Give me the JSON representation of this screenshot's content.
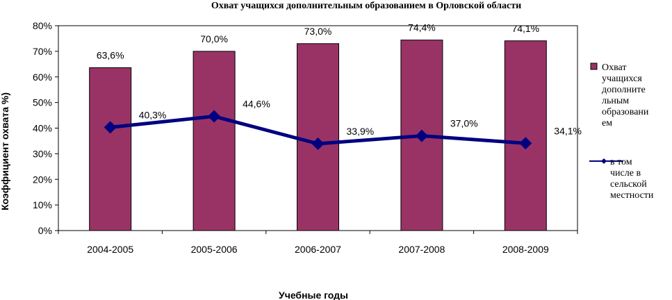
{
  "chart_data": {
    "type": "bar",
    "title": "Охват учащихся дополнительным образованием в Орловской области",
    "xlabel": "Учебные годы",
    "ylabel": "Коэффициент охвата %)",
    "categories": [
      "2004-2005",
      "2005-2006",
      "2006-2007",
      "2007-2008",
      "2008-2009"
    ],
    "ylim": [
      0,
      80
    ],
    "yticks": [
      "0%",
      "10%",
      "20%",
      "30%",
      "40%",
      "50%",
      "60%",
      "70%",
      "80%"
    ],
    "grid": false,
    "legend_position": "right",
    "series": [
      {
        "name": "Охват учащихся дополнительным образованием",
        "legend_lines": [
          "Охват",
          "учащихся",
          "дополните",
          "льным",
          "образовани",
          "ем"
        ],
        "kind": "bar",
        "color": "#993366",
        "values": [
          63.6,
          70.0,
          73.0,
          74.4,
          74.1
        ],
        "labels": [
          "63,6%",
          "70,0%",
          "73,0%",
          "74,4%",
          "74,1%"
        ]
      },
      {
        "name": "в том числе в сельской местности",
        "legend_lines": [
          "в том",
          "числе в",
          "сельской",
          "местности"
        ],
        "kind": "line",
        "color": "#000080",
        "values": [
          40.3,
          44.6,
          33.9,
          37.0,
          34.1
        ],
        "labels": [
          "40,3%",
          "44,6%",
          "33,9%",
          "37,0%",
          "34,1%"
        ]
      }
    ]
  }
}
